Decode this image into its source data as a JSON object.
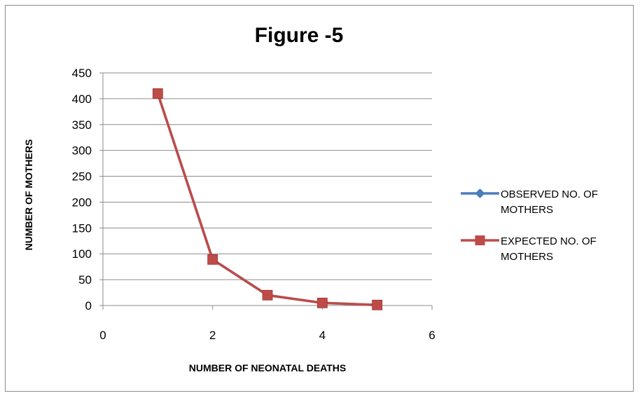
{
  "chart_data": {
    "type": "line",
    "title": "Figure -5",
    "xlabel": "NUMBER OF NEONATAL DEATHS",
    "ylabel": "NUMBER OF MOTHERS",
    "xlim": [
      0,
      6
    ],
    "ylim": [
      0,
      450
    ],
    "xticks": [
      0,
      2,
      4,
      6
    ],
    "yticks": [
      0,
      50,
      100,
      150,
      200,
      250,
      300,
      350,
      400,
      450
    ],
    "grid": "horizontal",
    "legend_position": "right",
    "series": [
      {
        "name": "OBSERVED NO. OF MOTHERS",
        "name_lines": [
          "OBSERVED NO. OF",
          "MOTHERS"
        ],
        "color": "#4a7ebb",
        "marker": "diamond",
        "x": [
          1,
          2,
          3,
          4,
          5
        ],
        "y": [
          410,
          89,
          20,
          5,
          1
        ]
      },
      {
        "name": "EXPECTED NO. OF MOTHERS",
        "name_lines": [
          "EXPECTED NO. OF",
          "MOTHERS"
        ],
        "color": "#be4b48",
        "marker": "square",
        "x": [
          1,
          2,
          3,
          4,
          5
        ],
        "y": [
          410,
          89,
          20,
          5,
          1
        ]
      }
    ]
  }
}
